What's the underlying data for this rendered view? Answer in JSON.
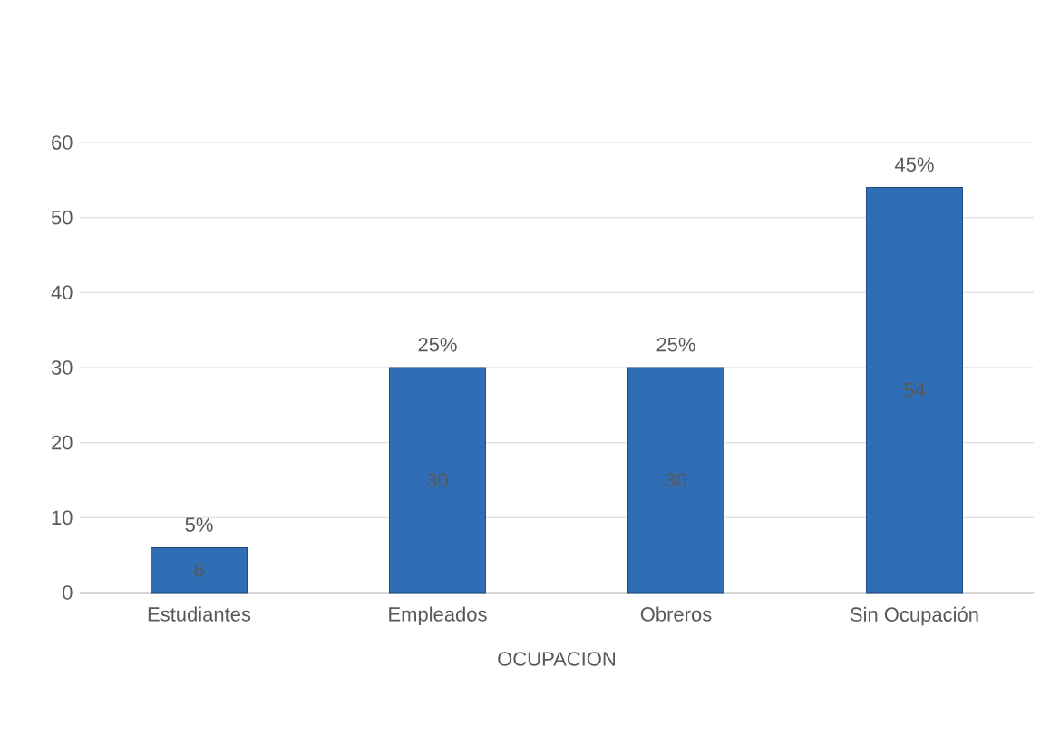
{
  "chart_data": {
    "type": "bar",
    "xlabel": "OCUPACION",
    "categories": [
      "Estudiantes",
      "Empleados",
      "Obreros",
      "Sin Ocupación"
    ],
    "values": [
      6,
      30,
      30,
      54
    ],
    "data_labels": true,
    "annotations": [
      {
        "text": "5%",
        "x": "Estudiantes",
        "y": 6
      },
      {
        "text": "25%",
        "x": "Empleados",
        "y": 30
      },
      {
        "text": "25%",
        "x": "Obreros",
        "y": 30
      },
      {
        "text": "45%",
        "x": "Sin Ocupación",
        "y": 54
      }
    ],
    "color": "#2f6db5",
    "ylim": [
      0,
      60
    ],
    "yticks": [
      0,
      10,
      20,
      30,
      40,
      50,
      60
    ],
    "grid": "y"
  }
}
